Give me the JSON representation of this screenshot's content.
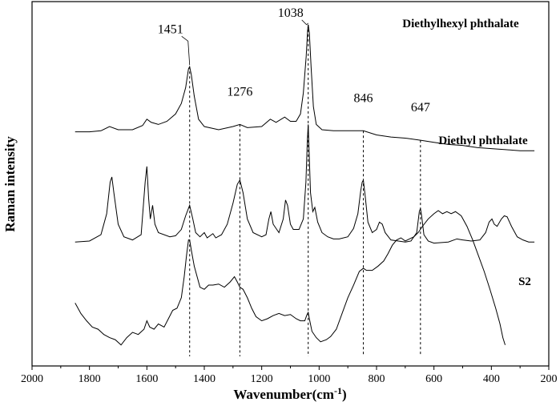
{
  "chart_data": {
    "type": "line",
    "xlabel": "Wavenumber(cm",
    "xlabel_superscript": "-1",
    "xlabel_suffix": ")",
    "ylabel": "Raman intensity",
    "xlim": [
      2000,
      200
    ],
    "x_reversed": true,
    "x_ticks": [
      2000,
      1800,
      1600,
      1400,
      1200,
      1000,
      800,
      600,
      400,
      200
    ],
    "y_ticks": "none",
    "grid": false,
    "series": [
      {
        "name": "Diethylhexyl phthalate",
        "offset": 2.0,
        "points": [
          [
            1850,
            0.08
          ],
          [
            1800,
            0.08
          ],
          [
            1760,
            0.09
          ],
          [
            1730,
            0.13
          ],
          [
            1700,
            0.1
          ],
          [
            1650,
            0.1
          ],
          [
            1615,
            0.14
          ],
          [
            1600,
            0.2
          ],
          [
            1585,
            0.17
          ],
          [
            1560,
            0.15
          ],
          [
            1530,
            0.18
          ],
          [
            1500,
            0.25
          ],
          [
            1480,
            0.35
          ],
          [
            1465,
            0.5
          ],
          [
            1455,
            0.68
          ],
          [
            1451,
            0.7
          ],
          [
            1445,
            0.62
          ],
          [
            1435,
            0.42
          ],
          [
            1420,
            0.2
          ],
          [
            1400,
            0.13
          ],
          [
            1350,
            0.1
          ],
          [
            1300,
            0.13
          ],
          [
            1276,
            0.15
          ],
          [
            1250,
            0.12
          ],
          [
            1200,
            0.13
          ],
          [
            1170,
            0.2
          ],
          [
            1150,
            0.17
          ],
          [
            1120,
            0.22
          ],
          [
            1100,
            0.18
          ],
          [
            1080,
            0.18
          ],
          [
            1065,
            0.25
          ],
          [
            1055,
            0.45
          ],
          [
            1045,
            0.8
          ],
          [
            1040,
            1.05
          ],
          [
            1038,
            1.1
          ],
          [
            1034,
            1.02
          ],
          [
            1028,
            0.7
          ],
          [
            1020,
            0.32
          ],
          [
            1010,
            0.15
          ],
          [
            990,
            0.1
          ],
          [
            950,
            0.09
          ],
          [
            900,
            0.09
          ],
          [
            846,
            0.09
          ],
          [
            800,
            0.05
          ],
          [
            750,
            0.03
          ],
          [
            700,
            0.02
          ],
          [
            647,
            0.0
          ],
          [
            600,
            -0.02
          ],
          [
            550,
            -0.04
          ],
          [
            500,
            -0.05
          ],
          [
            450,
            -0.07
          ],
          [
            400,
            -0.08
          ],
          [
            350,
            -0.09
          ],
          [
            300,
            -0.1
          ],
          [
            250,
            -0.1
          ]
        ]
      },
      {
        "name": "Diethyl phthalate",
        "offset": 1.0,
        "points": [
          [
            1850,
            0.03
          ],
          [
            1800,
            0.04
          ],
          [
            1760,
            0.1
          ],
          [
            1740,
            0.3
          ],
          [
            1728,
            0.6
          ],
          [
            1722,
            0.65
          ],
          [
            1715,
            0.5
          ],
          [
            1700,
            0.2
          ],
          [
            1680,
            0.08
          ],
          [
            1650,
            0.05
          ],
          [
            1620,
            0.1
          ],
          [
            1606,
            0.6
          ],
          [
            1600,
            0.75
          ],
          [
            1594,
            0.45
          ],
          [
            1588,
            0.25
          ],
          [
            1580,
            0.38
          ],
          [
            1572,
            0.2
          ],
          [
            1560,
            0.12
          ],
          [
            1520,
            0.08
          ],
          [
            1500,
            0.09
          ],
          [
            1480,
            0.15
          ],
          [
            1465,
            0.28
          ],
          [
            1451,
            0.38
          ],
          [
            1440,
            0.25
          ],
          [
            1430,
            0.12
          ],
          [
            1415,
            0.08
          ],
          [
            1400,
            0.12
          ],
          [
            1390,
            0.07
          ],
          [
            1370,
            0.11
          ],
          [
            1360,
            0.07
          ],
          [
            1340,
            0.1
          ],
          [
            1320,
            0.2
          ],
          [
            1300,
            0.4
          ],
          [
            1285,
            0.58
          ],
          [
            1276,
            0.62
          ],
          [
            1265,
            0.5
          ],
          [
            1250,
            0.25
          ],
          [
            1230,
            0.12
          ],
          [
            1200,
            0.08
          ],
          [
            1185,
            0.1
          ],
          [
            1175,
            0.25
          ],
          [
            1168,
            0.32
          ],
          [
            1160,
            0.2
          ],
          [
            1140,
            0.12
          ],
          [
            1125,
            0.25
          ],
          [
            1117,
            0.43
          ],
          [
            1110,
            0.38
          ],
          [
            1100,
            0.2
          ],
          [
            1090,
            0.15
          ],
          [
            1070,
            0.15
          ],
          [
            1055,
            0.25
          ],
          [
            1046,
            0.6
          ],
          [
            1041,
            1.0
          ],
          [
            1038,
            1.15
          ],
          [
            1035,
            0.9
          ],
          [
            1030,
            0.5
          ],
          [
            1022,
            0.32
          ],
          [
            1015,
            0.36
          ],
          [
            1005,
            0.22
          ],
          [
            990,
            0.12
          ],
          [
            970,
            0.08
          ],
          [
            950,
            0.06
          ],
          [
            930,
            0.06
          ],
          [
            900,
            0.08
          ],
          [
            880,
            0.16
          ],
          [
            865,
            0.3
          ],
          [
            855,
            0.52
          ],
          [
            850,
            0.6
          ],
          [
            846,
            0.62
          ],
          [
            840,
            0.48
          ],
          [
            830,
            0.22
          ],
          [
            815,
            0.12
          ],
          [
            800,
            0.15
          ],
          [
            790,
            0.22
          ],
          [
            780,
            0.2
          ],
          [
            770,
            0.12
          ],
          [
            750,
            0.05
          ],
          [
            700,
            0.03
          ],
          [
            680,
            0.04
          ],
          [
            660,
            0.12
          ],
          [
            651,
            0.32
          ],
          [
            647,
            0.35
          ],
          [
            643,
            0.28
          ],
          [
            635,
            0.1
          ],
          [
            620,
            0.04
          ],
          [
            600,
            0.02
          ],
          [
            550,
            0.03
          ],
          [
            520,
            0.06
          ],
          [
            500,
            0.05
          ],
          [
            470,
            0.04
          ],
          [
            440,
            0.05
          ],
          [
            420,
            0.12
          ],
          [
            408,
            0.22
          ],
          [
            398,
            0.25
          ],
          [
            390,
            0.2
          ],
          [
            380,
            0.18
          ],
          [
            365,
            0.25
          ],
          [
            355,
            0.28
          ],
          [
            345,
            0.27
          ],
          [
            330,
            0.18
          ],
          [
            310,
            0.08
          ],
          [
            290,
            0.05
          ],
          [
            270,
            0.03
          ],
          [
            250,
            0.03
          ]
        ]
      },
      {
        "name": "S2",
        "offset": 0.0,
        "points": [
          [
            1850,
            0.45
          ],
          [
            1830,
            0.35
          ],
          [
            1810,
            0.28
          ],
          [
            1790,
            0.22
          ],
          [
            1770,
            0.2
          ],
          [
            1750,
            0.15
          ],
          [
            1730,
            0.12
          ],
          [
            1710,
            0.1
          ],
          [
            1690,
            0.05
          ],
          [
            1670,
            0.12
          ],
          [
            1650,
            0.17
          ],
          [
            1630,
            0.15
          ],
          [
            1610,
            0.2
          ],
          [
            1600,
            0.28
          ],
          [
            1590,
            0.22
          ],
          [
            1575,
            0.2
          ],
          [
            1560,
            0.25
          ],
          [
            1540,
            0.22
          ],
          [
            1525,
            0.3
          ],
          [
            1510,
            0.38
          ],
          [
            1495,
            0.4
          ],
          [
            1480,
            0.5
          ],
          [
            1470,
            0.7
          ],
          [
            1462,
            0.9
          ],
          [
            1455,
            1.05
          ],
          [
            1451,
            1.05
          ],
          [
            1445,
            0.95
          ],
          [
            1435,
            0.8
          ],
          [
            1425,
            0.7
          ],
          [
            1415,
            0.6
          ],
          [
            1400,
            0.58
          ],
          [
            1385,
            0.62
          ],
          [
            1370,
            0.62
          ],
          [
            1350,
            0.63
          ],
          [
            1330,
            0.6
          ],
          [
            1310,
            0.65
          ],
          [
            1295,
            0.7
          ],
          [
            1285,
            0.65
          ],
          [
            1276,
            0.6
          ],
          [
            1265,
            0.58
          ],
          [
            1250,
            0.5
          ],
          [
            1235,
            0.4
          ],
          [
            1220,
            0.32
          ],
          [
            1200,
            0.28
          ],
          [
            1180,
            0.3
          ],
          [
            1160,
            0.33
          ],
          [
            1140,
            0.35
          ],
          [
            1120,
            0.33
          ],
          [
            1100,
            0.34
          ],
          [
            1080,
            0.3
          ],
          [
            1065,
            0.28
          ],
          [
            1050,
            0.28
          ],
          [
            1042,
            0.34
          ],
          [
            1038,
            0.36
          ],
          [
            1034,
            0.3
          ],
          [
            1025,
            0.18
          ],
          [
            1010,
            0.12
          ],
          [
            995,
            0.08
          ],
          [
            975,
            0.1
          ],
          [
            960,
            0.13
          ],
          [
            940,
            0.2
          ],
          [
            920,
            0.35
          ],
          [
            900,
            0.5
          ],
          [
            880,
            0.62
          ],
          [
            860,
            0.75
          ],
          [
            846,
            0.78
          ],
          [
            835,
            0.76
          ],
          [
            815,
            0.76
          ],
          [
            795,
            0.8
          ],
          [
            775,
            0.85
          ],
          [
            760,
            0.92
          ],
          [
            745,
            1.0
          ],
          [
            730,
            1.05
          ],
          [
            715,
            1.07
          ],
          [
            700,
            1.04
          ],
          [
            685,
            1.06
          ],
          [
            670,
            1.08
          ],
          [
            655,
            1.12
          ],
          [
            640,
            1.18
          ],
          [
            620,
            1.25
          ],
          [
            600,
            1.3
          ],
          [
            585,
            1.33
          ],
          [
            570,
            1.3
          ],
          [
            555,
            1.32
          ],
          [
            540,
            1.3
          ],
          [
            525,
            1.32
          ],
          [
            505,
            1.28
          ],
          [
            485,
            1.18
          ],
          [
            465,
            1.05
          ],
          [
            445,
            0.9
          ],
          [
            425,
            0.75
          ],
          [
            405,
            0.58
          ],
          [
            385,
            0.4
          ],
          [
            370,
            0.25
          ],
          [
            360,
            0.12
          ],
          [
            352,
            0.05
          ]
        ]
      }
    ],
    "peak_markers": [
      {
        "x": 1451,
        "label": "1451"
      },
      {
        "x": 1276,
        "label": "1276"
      },
      {
        "x": 1038,
        "label": "1038"
      },
      {
        "x": 846,
        "label": "846"
      },
      {
        "x": 647,
        "label": "647"
      }
    ]
  }
}
